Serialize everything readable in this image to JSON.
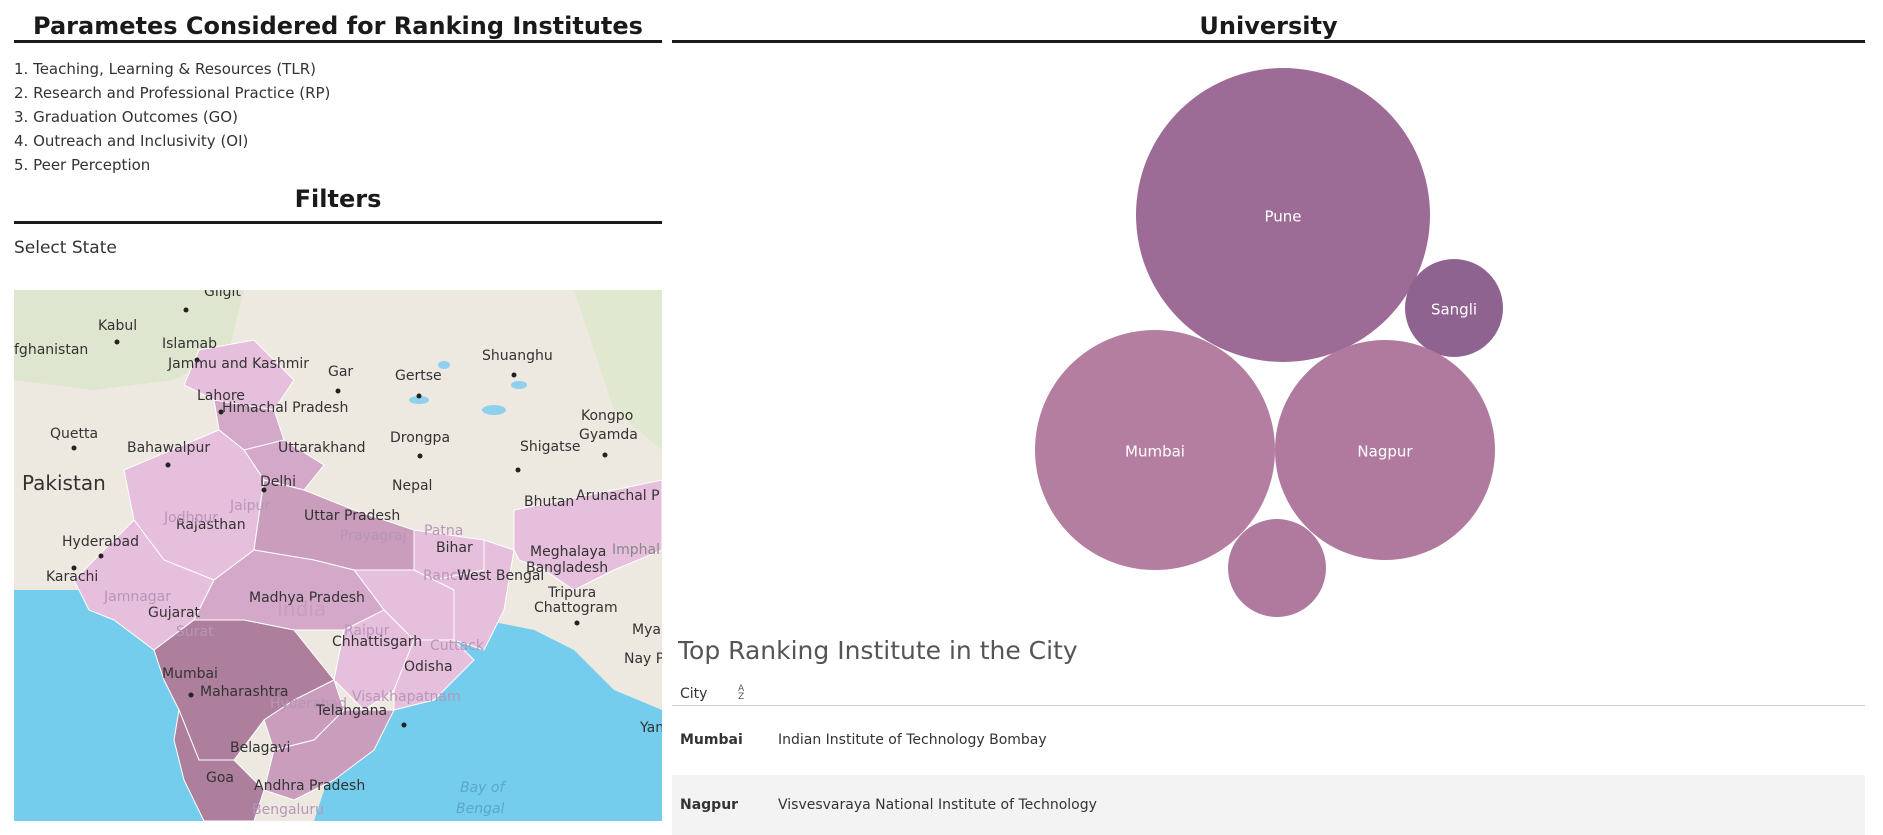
{
  "parameters": {
    "title": "Parametes Considered for Ranking Institutes",
    "items": [
      "1. Teaching, Learning & Resources (TLR)",
      "2. Research and Professional Practice (RP)",
      "3. Graduation Outcomes (GO)",
      "4. Outreach and Inclusivity (OI)",
      "5. Peer Perception"
    ]
  },
  "filters": {
    "title": "Filters",
    "select_label": "Select State"
  },
  "map": {
    "labels": {
      "gilgit": "Gilgit",
      "kabul": "Kabul",
      "afghanistan": "fghanistan",
      "islamabad": "Islamab",
      "jk": "Jammu and Kashmir",
      "gar": "Gar",
      "gertse": "Gertse",
      "shuanghu": "Shuanghu",
      "lahore": "Lahore",
      "hp": "Himachal Pradesh",
      "quetta": "Quetta",
      "bahawalpur": "Bahawalpur",
      "uttarakhand": "Uttarakhand",
      "drongpa": "Drongpa",
      "shigatse": "Shigatse",
      "kongpo": "Kongpo",
      "gyamda": "Gyamda",
      "pakistan": "Pakistan",
      "delhi": "Delhi",
      "nepal": "Nepal",
      "arunachal": "Arunachal P",
      "bhutan": "Bhutan",
      "rajasthan": "Rajasthan",
      "jaipur": "Jaipur",
      "up": "Uttar Pradesh",
      "prayagraj": "Prayagraj",
      "patna": "Patna",
      "hyderabad_pk": "Hyderabad",
      "bihar": "Bihar",
      "meghalaya": "Meghalaya",
      "imphal": "Imphal",
      "jodhpur": "Jodhpur",
      "karachi": "Karachi",
      "bangladesh": "Bangladesh",
      "ranchi": "Ranchi",
      "wb": "West Bengal",
      "mp": "Madhya Pradesh",
      "tripura": "Tripura",
      "india": "India",
      "gujarat": "Gujarat",
      "jamnagar": "Jamnagar",
      "chattogram": "Chattogram",
      "surat": "Surat",
      "raipur": "Raipur",
      "myan": "Myan",
      "chhattisgarh": "Chhattisgarh",
      "cuttack": "Cuttack",
      "naypyi": "Nay P",
      "mumbai": "Mumbai",
      "odisha": "Odisha",
      "maharashtra": "Maharashtra",
      "vizag": "Visakhapatnam",
      "hyderabad": "Hyderabad",
      "telangana": "Telangana",
      "yan": "Yan",
      "belagavi": "Belagavi",
      "goa": "Goa",
      "ap": "Andhra Pradesh",
      "bay": "Bay of",
      "bengal": "Bengal",
      "bengaluru": "Bengaluru"
    }
  },
  "university": {
    "title": "University",
    "bubbles": [
      {
        "label": "Pune",
        "color": "#9c6b96"
      },
      {
        "label": "Sangli",
        "color": "#8f6390"
      },
      {
        "label": "Mumbai",
        "color": "#b47ea1"
      },
      {
        "label": "Nagpur",
        "color": "#b07a9f"
      },
      {
        "label": "",
        "color": "#b07a9f"
      }
    ]
  },
  "table": {
    "title": "Top Ranking Institute in the City",
    "column_header": "City",
    "rows": [
      {
        "city": "Mumbai",
        "institute": "Indian Institute of Technology Bombay"
      },
      {
        "city": "Nagpur",
        "institute": "Visvesvaraya National Institute of Technology"
      }
    ]
  },
  "colors": {
    "state_light": "#e6bfdc",
    "state_medium": "#c99dbb",
    "state_dark": "#ad7f9c",
    "ocean": "#74cdec",
    "land": "#ede8e0"
  }
}
